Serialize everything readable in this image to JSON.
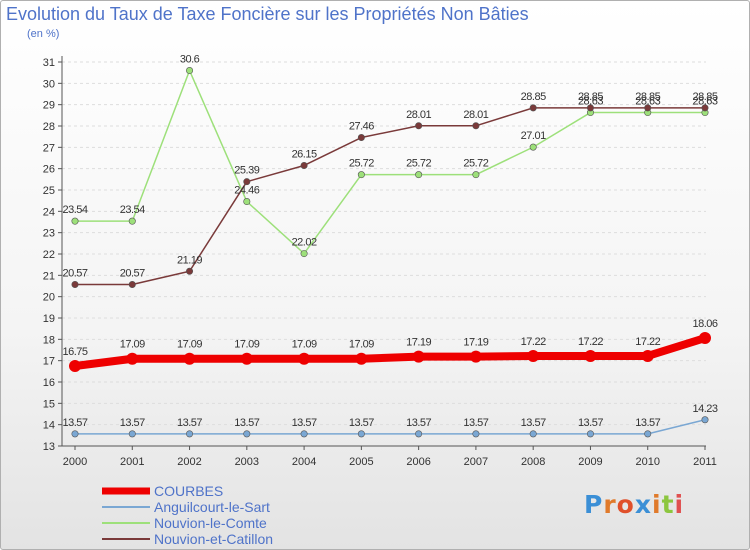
{
  "title": "Evolution du Taux de Taxe Foncière sur les Propriétés Non Bâties",
  "unit_label": "(en %)",
  "logo_text": "Proxiti",
  "colors": {
    "title": "#4f73c9",
    "axis": "#555555",
    "grid": "#dddddd"
  },
  "chart_data": {
    "type": "line",
    "title": "Evolution du Taux de Taxe Foncière sur les Propriétés Non Bâties",
    "ylabel": "(en %)",
    "xlabel": "",
    "x": [
      "2000",
      "2001",
      "2002",
      "2003",
      "2004",
      "2005",
      "2006",
      "2007",
      "2008",
      "2009",
      "2010",
      "2011"
    ],
    "ylim": [
      13,
      31
    ],
    "yticks": [
      "13",
      "14",
      "15",
      "16",
      "17",
      "18",
      "19",
      "20",
      "21",
      "22",
      "23",
      "24",
      "25",
      "26",
      "27",
      "28",
      "29",
      "30",
      "31"
    ],
    "grid": "dashed horizontal",
    "legend_position": "bottom-left",
    "series": [
      {
        "name": "COURBES",
        "color": "#ee0000",
        "values": [
          16.75,
          17.09,
          17.09,
          17.09,
          17.09,
          17.09,
          17.19,
          17.19,
          17.22,
          17.22,
          17.22,
          18.06
        ],
        "labels": [
          "16.75",
          "17.09",
          "17.09",
          "17.09",
          "17.09",
          "17.09",
          "17.19",
          "17.19",
          "17.22",
          "17.22",
          "17.22",
          "18.06"
        ]
      },
      {
        "name": "Anguilcourt-le-Sart",
        "color": "#7aa7d3",
        "values": [
          13.57,
          13.57,
          13.57,
          13.57,
          13.57,
          13.57,
          13.57,
          13.57,
          13.57,
          13.57,
          13.57,
          14.23
        ],
        "labels": [
          "13.57",
          "13.57",
          "13.57",
          "13.57",
          "13.57",
          "13.57",
          "13.57",
          "13.57",
          "13.57",
          "13.57",
          "13.57",
          "14.23"
        ]
      },
      {
        "name": "Nouvion-le-Comte",
        "color": "#9de07a",
        "values": [
          23.54,
          23.54,
          30.6,
          24.46,
          22.02,
          25.72,
          25.72,
          25.72,
          27.01,
          28.63,
          28.63,
          28.63
        ],
        "labels": [
          "23.54",
          "23.54",
          "30.6",
          "24.46",
          "22.02",
          "25.72",
          "25.72",
          "25.72",
          "27.01",
          "28.63",
          "28.63",
          "28.63"
        ]
      },
      {
        "name": "Nouvion-et-Catillon",
        "color": "#7a3a3a",
        "values": [
          20.57,
          20.57,
          21.19,
          25.39,
          26.15,
          27.46,
          28.01,
          28.01,
          28.85,
          28.85,
          28.85,
          28.85
        ],
        "labels": [
          "20.57",
          "20.57",
          "21.19",
          "25.39",
          "26.15",
          "27.46",
          "28.01",
          "28.01",
          "28.85",
          "28.85",
          "28.85",
          "28.85"
        ]
      }
    ]
  }
}
